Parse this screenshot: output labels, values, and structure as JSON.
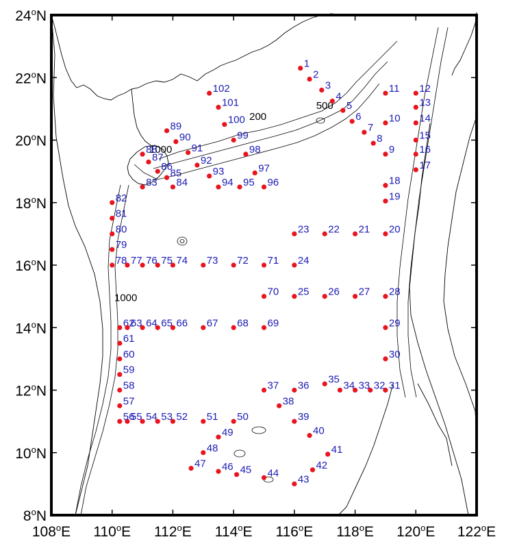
{
  "x_ticks": [
    {
      "deg": "108",
      "hemi": "E"
    },
    {
      "deg": "110",
      "hemi": "E"
    },
    {
      "deg": "112",
      "hemi": "E"
    },
    {
      "deg": "114",
      "hemi": "E"
    },
    {
      "deg": "116",
      "hemi": "E"
    },
    {
      "deg": "118",
      "hemi": "E"
    },
    {
      "deg": "120",
      "hemi": "E"
    },
    {
      "deg": "122",
      "hemi": "E"
    }
  ],
  "y_ticks": [
    {
      "deg": "8",
      "hemi": "N"
    },
    {
      "deg": "10",
      "hemi": "N"
    },
    {
      "deg": "12",
      "hemi": "N"
    },
    {
      "deg": "14",
      "hemi": "N"
    },
    {
      "deg": "16",
      "hemi": "N"
    },
    {
      "deg": "18",
      "hemi": "N"
    },
    {
      "deg": "20",
      "hemi": "N"
    },
    {
      "deg": "22",
      "hemi": "N"
    },
    {
      "deg": "24",
      "hemi": "N"
    }
  ],
  "depth_labels": [
    {
      "text": "200",
      "lon": 114.8,
      "lat": 20.65
    },
    {
      "text": "500",
      "lon": 117.0,
      "lat": 21.0
    },
    {
      "text": "1000",
      "lon": 111.6,
      "lat": 19.6
    },
    {
      "text": "1000",
      "lon": 110.45,
      "lat": 14.85
    }
  ],
  "colors": {
    "station": "#e8141e",
    "station_label": "#1a1ab4",
    "contour": "#000000",
    "frame": "#000000"
  },
  "stations": [
    {
      "id": "1",
      "lon": 116.2,
      "lat": 22.3
    },
    {
      "id": "2",
      "lon": 116.5,
      "lat": 21.95
    },
    {
      "id": "3",
      "lon": 116.9,
      "lat": 21.6
    },
    {
      "id": "4",
      "lon": 117.25,
      "lat": 21.25
    },
    {
      "id": "5",
      "lon": 117.6,
      "lat": 20.95
    },
    {
      "id": "6",
      "lon": 117.9,
      "lat": 20.6
    },
    {
      "id": "7",
      "lon": 118.3,
      "lat": 20.25
    },
    {
      "id": "8",
      "lon": 118.6,
      "lat": 19.9
    },
    {
      "id": "9",
      "lon": 119.0,
      "lat": 19.55
    },
    {
      "id": "10",
      "lon": 119.0,
      "lat": 20.55
    },
    {
      "id": "11",
      "lon": 119.0,
      "lat": 21.5
    },
    {
      "id": "12",
      "lon": 120.0,
      "lat": 21.5
    },
    {
      "id": "13",
      "lon": 120.0,
      "lat": 21.05
    },
    {
      "id": "14",
      "lon": 120.0,
      "lat": 20.55
    },
    {
      "id": "15",
      "lon": 120.0,
      "lat": 20.0
    },
    {
      "id": "16",
      "lon": 120.0,
      "lat": 19.55
    },
    {
      "id": "17",
      "lon": 120.0,
      "lat": 19.05
    },
    {
      "id": "18",
      "lon": 119.0,
      "lat": 18.55
    },
    {
      "id": "19",
      "lon": 119.0,
      "lat": 18.05
    },
    {
      "id": "20",
      "lon": 119.0,
      "lat": 17.0
    },
    {
      "id": "21",
      "lon": 118.0,
      "lat": 17.0
    },
    {
      "id": "22",
      "lon": 117.0,
      "lat": 17.0
    },
    {
      "id": "23",
      "lon": 116.0,
      "lat": 17.0
    },
    {
      "id": "24",
      "lon": 116.0,
      "lat": 16.0
    },
    {
      "id": "25",
      "lon": 116.0,
      "lat": 15.0
    },
    {
      "id": "26",
      "lon": 117.0,
      "lat": 15.0
    },
    {
      "id": "27",
      "lon": 118.0,
      "lat": 15.0
    },
    {
      "id": "28",
      "lon": 119.0,
      "lat": 15.0
    },
    {
      "id": "29",
      "lon": 119.0,
      "lat": 14.0
    },
    {
      "id": "30",
      "lon": 119.0,
      "lat": 13.0
    },
    {
      "id": "31",
      "lon": 119.0,
      "lat": 12.0
    },
    {
      "id": "32",
      "lon": 118.5,
      "lat": 12.0
    },
    {
      "id": "33",
      "lon": 118.0,
      "lat": 12.0
    },
    {
      "id": "34",
      "lon": 117.5,
      "lat": 12.0
    },
    {
      "id": "35",
      "lon": 117.0,
      "lat": 12.2
    },
    {
      "id": "36",
      "lon": 116.0,
      "lat": 12.0
    },
    {
      "id": "37",
      "lon": 115.0,
      "lat": 12.0
    },
    {
      "id": "38",
      "lon": 115.5,
      "lat": 11.5
    },
    {
      "id": "39",
      "lon": 116.0,
      "lat": 11.0
    },
    {
      "id": "40",
      "lon": 116.5,
      "lat": 10.55
    },
    {
      "id": "41",
      "lon": 117.1,
      "lat": 9.95
    },
    {
      "id": "42",
      "lon": 116.6,
      "lat": 9.45
    },
    {
      "id": "43",
      "lon": 116.0,
      "lat": 9.0
    },
    {
      "id": "44",
      "lon": 115.0,
      "lat": 9.2
    },
    {
      "id": "45",
      "lon": 114.1,
      "lat": 9.3
    },
    {
      "id": "46",
      "lon": 113.5,
      "lat": 9.4
    },
    {
      "id": "47",
      "lon": 112.6,
      "lat": 9.5
    },
    {
      "id": "48",
      "lon": 113.0,
      "lat": 10.0
    },
    {
      "id": "49",
      "lon": 113.5,
      "lat": 10.5
    },
    {
      "id": "50",
      "lon": 114.0,
      "lat": 11.0
    },
    {
      "id": "51",
      "lon": 113.0,
      "lat": 11.0
    },
    {
      "id": "52",
      "lon": 112.0,
      "lat": 11.0
    },
    {
      "id": "53",
      "lon": 111.5,
      "lat": 11.0
    },
    {
      "id": "54",
      "lon": 111.0,
      "lat": 11.0
    },
    {
      "id": "55",
      "lon": 110.5,
      "lat": 11.0
    },
    {
      "id": "56",
      "lon": 110.25,
      "lat": 11.0
    },
    {
      "id": "57",
      "lon": 110.25,
      "lat": 11.5
    },
    {
      "id": "58",
      "lon": 110.25,
      "lat": 12.0
    },
    {
      "id": "59",
      "lon": 110.25,
      "lat": 12.5
    },
    {
      "id": "60",
      "lon": 110.25,
      "lat": 13.0
    },
    {
      "id": "61",
      "lon": 110.25,
      "lat": 13.5
    },
    {
      "id": "62",
      "lon": 110.25,
      "lat": 14.0
    },
    {
      "id": "63",
      "lon": 110.5,
      "lat": 14.0
    },
    {
      "id": "64",
      "lon": 111.0,
      "lat": 14.0
    },
    {
      "id": "65",
      "lon": 111.5,
      "lat": 14.0
    },
    {
      "id": "66",
      "lon": 112.0,
      "lat": 14.0
    },
    {
      "id": "67",
      "lon": 113.0,
      "lat": 14.0
    },
    {
      "id": "68",
      "lon": 114.0,
      "lat": 14.0
    },
    {
      "id": "69",
      "lon": 115.0,
      "lat": 14.0
    },
    {
      "id": "70",
      "lon": 115.0,
      "lat": 15.0
    },
    {
      "id": "71",
      "lon": 115.0,
      "lat": 16.0
    },
    {
      "id": "72",
      "lon": 114.0,
      "lat": 16.0
    },
    {
      "id": "73",
      "lon": 113.0,
      "lat": 16.0
    },
    {
      "id": "74",
      "lon": 112.0,
      "lat": 16.0
    },
    {
      "id": "75",
      "lon": 111.5,
      "lat": 16.0
    },
    {
      "id": "76",
      "lon": 111.0,
      "lat": 16.0
    },
    {
      "id": "77",
      "lon": 110.5,
      "lat": 16.0
    },
    {
      "id": "78",
      "lon": 110.0,
      "lat": 16.0
    },
    {
      "id": "79",
      "lon": 110.0,
      "lat": 16.5
    },
    {
      "id": "80",
      "lon": 110.0,
      "lat": 17.0
    },
    {
      "id": "81",
      "lon": 110.0,
      "lat": 17.5
    },
    {
      "id": "82",
      "lon": 110.0,
      "lat": 18.0
    },
    {
      "id": "83",
      "lon": 111.0,
      "lat": 18.5
    },
    {
      "id": "84",
      "lon": 112.0,
      "lat": 18.5
    },
    {
      "id": "85",
      "lon": 111.8,
      "lat": 18.8
    },
    {
      "id": "86",
      "lon": 111.5,
      "lat": 19.0
    },
    {
      "id": "87",
      "lon": 111.2,
      "lat": 19.3
    },
    {
      "id": "88",
      "lon": 111.0,
      "lat": 19.55
    },
    {
      "id": "89",
      "lon": 111.8,
      "lat": 20.3
    },
    {
      "id": "90",
      "lon": 112.1,
      "lat": 19.95
    },
    {
      "id": "91",
      "lon": 112.5,
      "lat": 19.6
    },
    {
      "id": "92",
      "lon": 112.8,
      "lat": 19.2
    },
    {
      "id": "93",
      "lon": 113.2,
      "lat": 18.85
    },
    {
      "id": "94",
      "lon": 113.5,
      "lat": 18.5
    },
    {
      "id": "95",
      "lon": 114.2,
      "lat": 18.5
    },
    {
      "id": "96",
      "lon": 115.0,
      "lat": 18.5
    },
    {
      "id": "97",
      "lon": 114.7,
      "lat": 18.95
    },
    {
      "id": "98",
      "lon": 114.4,
      "lat": 19.55
    },
    {
      "id": "99",
      "lon": 114.0,
      "lat": 20.0
    },
    {
      "id": "100",
      "lon": 113.7,
      "lat": 20.5
    },
    {
      "id": "101",
      "lon": 113.5,
      "lat": 21.05
    },
    {
      "id": "102",
      "lon": 113.2,
      "lat": 21.5
    }
  ]
}
